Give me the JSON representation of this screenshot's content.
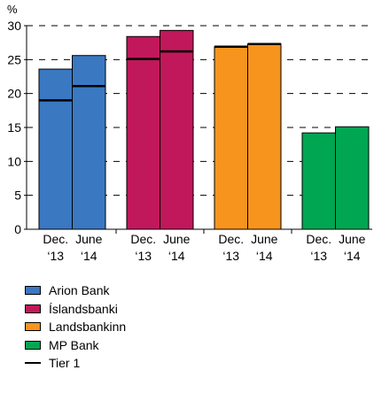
{
  "chart_data": {
    "type": "bar",
    "ylabel": "%",
    "ylim": [
      0,
      30
    ],
    "yticks": [
      0,
      5,
      10,
      15,
      20,
      25,
      30
    ],
    "grid": "dashed",
    "groups": [
      {
        "name": "Arion Bank",
        "color": "#3A78C2",
        "bars": [
          {
            "period": "Dec.",
            "year": "‘13",
            "total": 23.6,
            "tier1": 19.0
          },
          {
            "period": "June",
            "year": "‘14",
            "total": 25.6,
            "tier1": 21.1
          }
        ]
      },
      {
        "name": "Íslandsbanki",
        "color": "#C0185A",
        "bars": [
          {
            "period": "Dec.",
            "year": "‘13",
            "total": 28.4,
            "tier1": 25.1
          },
          {
            "period": "June",
            "year": "‘14",
            "total": 29.3,
            "tier1": 26.2
          }
        ]
      },
      {
        "name": "Landsbankinn",
        "color": "#F7941D",
        "bars": [
          {
            "period": "Dec.",
            "year": "‘13",
            "total": 26.9,
            "tier1": 26.9
          },
          {
            "period": "June",
            "year": "‘14",
            "total": 27.3,
            "tier1": 27.3
          }
        ]
      },
      {
        "name": "MP Bank",
        "color": "#00A652",
        "bars": [
          {
            "period": "Dec.",
            "year": "‘13",
            "total": 14.2,
            "tier1": null
          },
          {
            "period": "June",
            "year": "‘14",
            "total": 15.1,
            "tier1": null
          }
        ]
      }
    ],
    "legend": [
      {
        "label": "Arion Bank",
        "kind": "box",
        "color": "#3A78C2"
      },
      {
        "label": "Íslandsbanki",
        "kind": "box",
        "color": "#C0185A"
      },
      {
        "label": "Landsbankinn",
        "kind": "box",
        "color": "#F7941D"
      },
      {
        "label": "MP Bank",
        "kind": "box",
        "color": "#00A652"
      },
      {
        "label": "Tier 1",
        "kind": "line",
        "color": "#000000"
      }
    ]
  }
}
